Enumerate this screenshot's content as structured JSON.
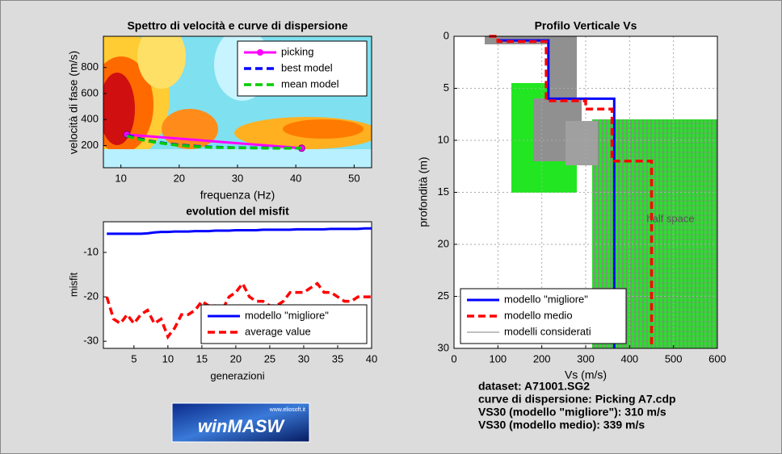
{
  "chart_data": [
    {
      "type": "line",
      "title": "Spettro di velocità e curve di dispersione",
      "xlabel": "frequenza (Hz)",
      "ylabel": "velocità di fase (m/s)",
      "xlim": [
        7,
        53
      ],
      "ylim": [
        30,
        1040
      ],
      "xticks": [
        10,
        20,
        30,
        40,
        50
      ],
      "yticks": [
        200,
        400,
        600,
        800
      ],
      "grid": false,
      "legend": "upper right",
      "series": [
        {
          "name": "picking",
          "color": "#ff00ff",
          "line_style": "solid",
          "marker": "circle",
          "x": [
            11,
            41
          ],
          "values": [
            285,
            180
          ]
        },
        {
          "name": "best model",
          "color": "#0000ff",
          "line_style": "dashed",
          "x": [
            11,
            13,
            15,
            18,
            20,
            23,
            26,
            30,
            35,
            41
          ],
          "values": [
            280,
            255,
            235,
            215,
            205,
            195,
            188,
            184,
            182,
            180
          ]
        },
        {
          "name": "mean model",
          "color": "#00cc00",
          "line_style": "dashed",
          "x": [
            11,
            13,
            15,
            18,
            20,
            23,
            26,
            30,
            35,
            41
          ],
          "values": [
            275,
            250,
            232,
            212,
            202,
            192,
            186,
            183,
            181,
            180
          ]
        }
      ]
    },
    {
      "type": "line",
      "title": "evolution del misfit",
      "xlabel": "generazioni",
      "ylabel": "misfit",
      "xlim": [
        0.5,
        40
      ],
      "ylim": [
        -31.6,
        -3.1
      ],
      "xticks": [
        5,
        10,
        15,
        20,
        25,
        30,
        35,
        40
      ],
      "yticks": [
        -30,
        -20,
        -10
      ],
      "grid": false,
      "legend": "lower right",
      "x": [
        1,
        2,
        3,
        4,
        5,
        6,
        7,
        8,
        9,
        10,
        11,
        12,
        13,
        14,
        15,
        16,
        17,
        18,
        19,
        20,
        21,
        22,
        23,
        24,
        25,
        26,
        27,
        28,
        29,
        30,
        31,
        32,
        33,
        34,
        35,
        36,
        37,
        38,
        39,
        40
      ],
      "series": [
        {
          "name": "modello \"migliore\"",
          "color": "#0000ff",
          "line_style": "solid",
          "values": [
            -5.8,
            -5.8,
            -5.8,
            -5.8,
            -5.8,
            -5.8,
            -5.7,
            -5.5,
            -5.4,
            -5.4,
            -5.3,
            -5.3,
            -5.3,
            -5.2,
            -5.2,
            -5.2,
            -5.1,
            -5.1,
            -5.1,
            -5.0,
            -5.0,
            -5.0,
            -5.0,
            -4.9,
            -4.9,
            -4.9,
            -4.9,
            -4.9,
            -4.8,
            -4.8,
            -4.8,
            -4.8,
            -4.8,
            -4.7,
            -4.7,
            -4.7,
            -4.7,
            -4.7,
            -4.6,
            -4.6
          ]
        },
        {
          "name": "average value",
          "color": "#ff0000",
          "line_style": "dashed",
          "values": [
            -20,
            -25,
            -26,
            -24,
            -26,
            -24,
            -23,
            -26,
            -25,
            -29,
            -27,
            -24,
            -24,
            -23,
            -21,
            -22,
            -22,
            -23,
            -20,
            -19,
            -17,
            -20,
            -21,
            -21,
            -22,
            -22,
            -21,
            -19,
            -19,
            -19,
            -18,
            -17,
            -19,
            -19,
            -20,
            -21,
            -21,
            -20,
            -20,
            -20
          ]
        }
      ]
    },
    {
      "type": "line",
      "title": "Profilo Verticale Vs",
      "xlabel": "Vs (m/s)",
      "ylabel": "profondità (m)",
      "annotation": "half space",
      "xlim": [
        0,
        600
      ],
      "ylim": [
        30,
        0
      ],
      "xticks": [
        0,
        100,
        200,
        300,
        400,
        500,
        600
      ],
      "yticks": [
        0,
        5,
        10,
        15,
        20,
        25,
        30
      ],
      "grid": true,
      "legend": "lower left",
      "series": [
        {
          "name": "modello \"migliore\"",
          "color": "#0000ff",
          "line_style": "solid",
          "x": [
            100,
            215,
            215,
            365,
            365
          ],
          "values": [
            0.4,
            0.4,
            6,
            6,
            30
          ]
        },
        {
          "name": "modello medio",
          "color": "#ff0000",
          "line_style": "dashed",
          "x": [
            80,
            100,
            100,
            210,
            210,
            300,
            300,
            360,
            360,
            450,
            450
          ],
          "values": [
            0,
            0,
            0.5,
            0.5,
            6.2,
            6.2,
            7,
            7,
            12,
            12,
            30
          ]
        },
        {
          "name": "modelli considerati",
          "color": "#808080",
          "line_style": "thin"
        }
      ]
    }
  ],
  "info": [
    "dataset: A71001.SG2",
    "curve di dispersione: Picking A7.cdp",
    "VS30 (modello \"migliore\"): 310 m/s",
    "VS30 (modello medio): 339 m/s"
  ],
  "logo": {
    "text": "winMASW",
    "url": "www.eliosoft.it"
  }
}
